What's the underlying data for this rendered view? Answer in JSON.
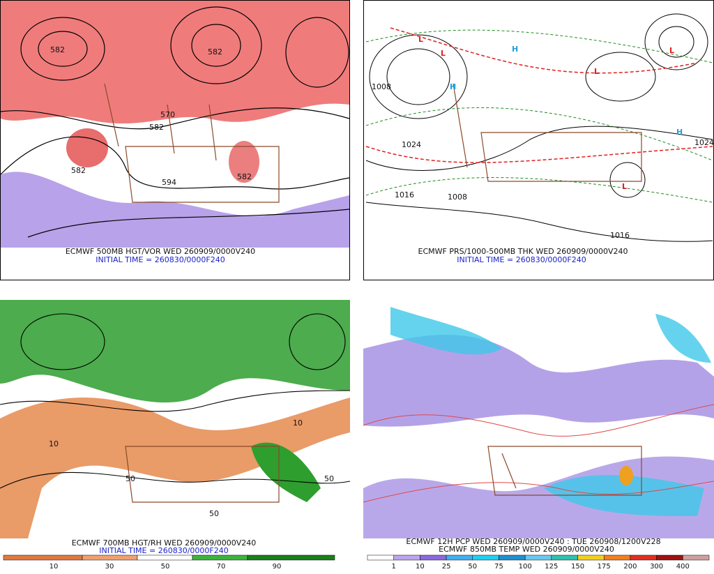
{
  "panels": [
    {
      "caption": "ECMWF 500MB HGT/VOR WED 260909/0000V240",
      "subcaption": "INITIAL TIME = 260830/0000F240",
      "labels": [
        "582",
        "582",
        "570",
        "582",
        "582",
        "594",
        "582"
      ]
    },
    {
      "caption": "ECMWF PRS/1000-500MB THK WED 260909/0000V240",
      "subcaption": "INITIAL TIME = 260830/0000F240",
      "labels": [
        "L",
        "L",
        "H",
        "H",
        "L",
        "L",
        "H",
        "L",
        "1008",
        "1024",
        "1016",
        "1008",
        "1024",
        "1016"
      ]
    },
    {
      "caption": "ECMWF 700MB HGT/RH WED 260909/0000V240",
      "subcaption": "INITIAL TIME = 260830/0000F240",
      "labels": [
        "10",
        "50",
        "50",
        "10",
        "50"
      ],
      "colorbar": [
        "10",
        "30",
        "50",
        "70",
        "90"
      ]
    },
    {
      "caption": "ECMWF 12H PCP WED 260909/0000V240 : TUE 260908/1200V228",
      "subcaption": "ECMWF 850MB TEMP WED 260909/0000V240",
      "colorbar": [
        "1",
        "10",
        "25",
        "50",
        "75",
        "100",
        "125",
        "150",
        "175",
        "200",
        "300",
        "400"
      ]
    }
  ]
}
